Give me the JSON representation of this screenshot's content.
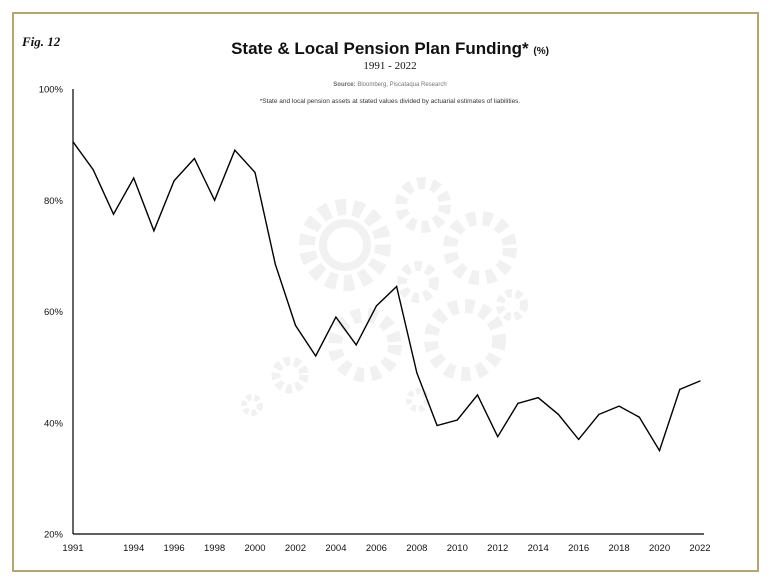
{
  "figure_label": "Fig. 12",
  "title": "State & Local Pension Plan Funding*",
  "title_unit": "(%)",
  "subtitle": "1991 - 2022",
  "source_label": "Source:",
  "source_text": "Bloomberg, Piscataqua Research",
  "footnote": "*State and local pension assets at stated values divided by actuarial estimates of liabilities.",
  "colors": {
    "frame": "#b9a46a",
    "line": "#000000",
    "axis": "#000000"
  },
  "chart_data": {
    "type": "line",
    "x": [
      1991,
      1992,
      1993,
      1994,
      1995,
      1996,
      1997,
      1998,
      1999,
      2000,
      2001,
      2002,
      2003,
      2004,
      2005,
      2006,
      2007,
      2008,
      2009,
      2010,
      2011,
      2012,
      2013,
      2014,
      2015,
      2016,
      2017,
      2018,
      2019,
      2020,
      2021,
      2022
    ],
    "series": [
      {
        "values": [
          90.5,
          85.5,
          77.5,
          84,
          74.5,
          83.5,
          87.5,
          80,
          89,
          85,
          68.5,
          57.5,
          52,
          59,
          54,
          61,
          64.5,
          49,
          39.5,
          40.5,
          45,
          37.5,
          43.5,
          44.5,
          41.5,
          37,
          41.5,
          43,
          41,
          35,
          46,
          47.5
        ]
      }
    ],
    "xlim": [
      1991,
      2022
    ],
    "ylim": [
      20,
      100
    ],
    "x_ticks": [
      "1991",
      "1994",
      "1996",
      "1998",
      "2000",
      "2002",
      "2004",
      "2006",
      "2008",
      "2010",
      "2012",
      "2014",
      "2016",
      "2018",
      "2020",
      "2022"
    ],
    "y_ticks": [
      "20%",
      "40%",
      "60%",
      "80%",
      "100%"
    ],
    "grid": false,
    "legend": "none"
  }
}
